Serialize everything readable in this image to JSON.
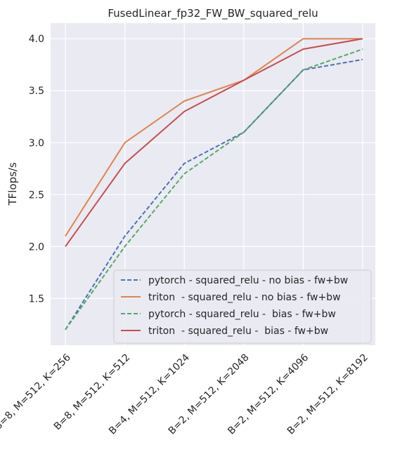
{
  "chart_data": {
    "type": "line",
    "title": "FusedLinear_fp32_FW_BW_squared_relu",
    "xlabel": "",
    "ylabel": "TFlops/s",
    "categories": [
      "B=8, M=512, K=256",
      "B=8, M=512, K=512",
      "B=4, M=512, K=1024",
      "B=2, M=512, K=2048",
      "B=2, M=512, K=4096",
      "B=2, M=512, K=8192"
    ],
    "ylim": [
      1.05,
      4.15
    ],
    "yticks": [
      1.5,
      2.0,
      2.5,
      3.0,
      3.5,
      4.0
    ],
    "ytick_labels": [
      "1.5",
      "2.0",
      "2.5",
      "3.0",
      "3.5",
      "4.0"
    ],
    "grid": true,
    "legend_position": "lower-right",
    "background": "#eaeaf2",
    "series": [
      {
        "name": "pytorch - squared_relu - no bias - fw+bw",
        "values": [
          1.2,
          2.1,
          2.8,
          3.1,
          3.7,
          3.8
        ],
        "color": "#4c72b0",
        "dash": "dashed"
      },
      {
        "name": "triton  - squared_relu - no bias - fw+bw",
        "values": [
          2.1,
          3.0,
          3.4,
          3.6,
          4.0,
          4.0
        ],
        "color": "#dd8452",
        "dash": "solid"
      },
      {
        "name": "pytorch - squared_relu -  bias - fw+bw",
        "values": [
          1.2,
          2.0,
          2.7,
          3.1,
          3.7,
          3.9
        ],
        "color": "#55a868",
        "dash": "dashed"
      },
      {
        "name": "triton  - squared_relu -  bias - fw+bw",
        "values": [
          2.0,
          2.8,
          3.3,
          3.6,
          3.9,
          4.0
        ],
        "color": "#c44e52",
        "dash": "solid"
      }
    ]
  }
}
